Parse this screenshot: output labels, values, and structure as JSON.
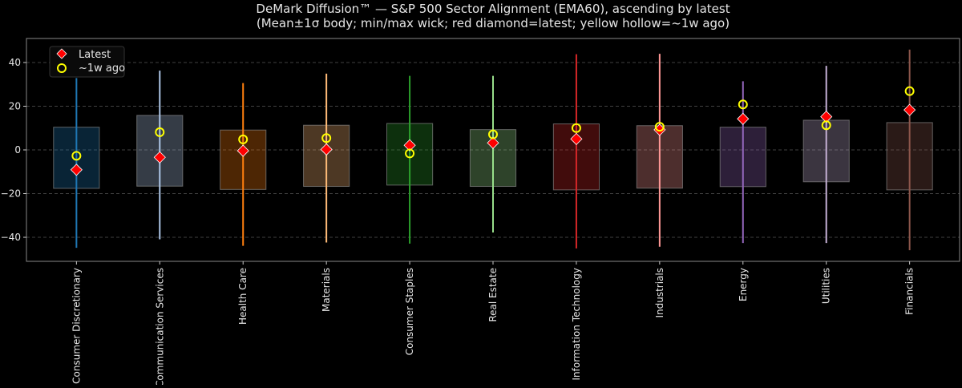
{
  "chart_data": {
    "type": "candlestick-range",
    "title": "DeMark Diffusion™ — S&P 500 Sector Alignment (EMA60), ascending by latest",
    "subtitle": "(Mean±1σ body; min/max wick; red diamond=latest; yellow hollow=~1w ago)",
    "xlabel": "",
    "ylabel": "",
    "ylim": [
      -51,
      51
    ],
    "yticks": [
      -40,
      -20,
      0,
      20,
      40
    ],
    "grid": true,
    "legend_position": "top-left",
    "legend": [
      {
        "label": "Latest",
        "marker": "diamond",
        "color": "#ff0000"
      },
      {
        "label": "~1w ago",
        "marker": "hollow-circle",
        "color": "#ffff00"
      }
    ],
    "categories": [
      "Consumer Discretionary",
      "Communication Services",
      "Health Care",
      "Materials",
      "Consumer Staples",
      "Real Estate",
      "Information Technology",
      "Industrials",
      "Energy",
      "Utilities",
      "Financials"
    ],
    "colors": [
      "#1f77b4",
      "#aec7e8",
      "#ff7f0e",
      "#ffbb78",
      "#2ca02c",
      "#98df8a",
      "#d62728",
      "#ff9896",
      "#9467bd",
      "#c5b0d5",
      "#8c564b"
    ],
    "mean": [
      -3.6,
      -0.4,
      -4.5,
      -2.7,
      -2.0,
      -3.7,
      -3.2,
      -3.2,
      -3.2,
      -0.5,
      -2.9
    ],
    "std": [
      14.0,
      16.2,
      13.6,
      14.0,
      14.1,
      13.0,
      15.1,
      14.3,
      13.6,
      14.1,
      15.4
    ],
    "min": [
      -44.8,
      -40.9,
      -43.9,
      -42.4,
      -42.9,
      -37.8,
      -45.1,
      -44.3,
      -42.6,
      -42.6,
      -45.9
    ],
    "max": [
      32.9,
      36.3,
      30.6,
      34.9,
      33.9,
      33.9,
      43.8,
      44.0,
      31.4,
      38.5,
      45.9
    ],
    "latest": [
      -9.1,
      -3.4,
      -0.4,
      0.2,
      2.1,
      3.2,
      5.0,
      9.2,
      14.2,
      15.2,
      18.3
    ],
    "week_ago": [
      -2.7,
      8.1,
      4.8,
      5.4,
      -1.6,
      7.1,
      10.0,
      10.6,
      20.8,
      11.3,
      26.9
    ]
  }
}
